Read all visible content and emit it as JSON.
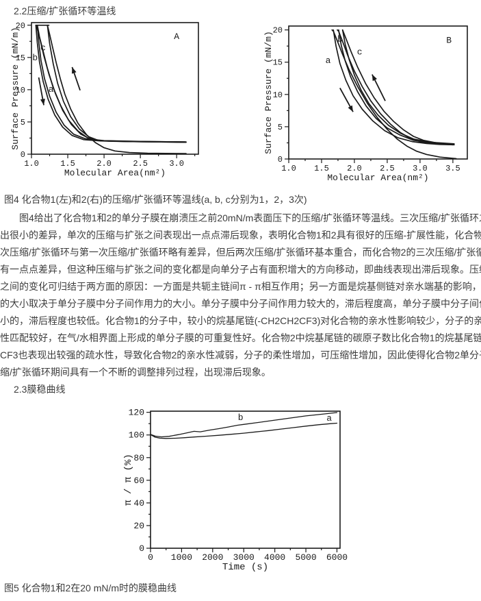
{
  "page": {
    "heading_2_2": "2.2压缩/扩张循环等温线",
    "heading_2_3": "2.3膜稳曲线",
    "fig4_caption": "图4 化合物1(左)和2(右)的压缩/扩张循环等温线(a, b, c分别为1，2，3次)",
    "fig5_caption": "图5 化合物1和2在20 mN/m时的膜稳曲线",
    "paragraph_lines": [
      "图4给出了化合物1和2的单分子膜在崩溃压之前20mN/m表面压下的压缩/扩张循环等温线。三次压缩/扩张循环之间表现",
      "出很小的差异，单次的压缩与扩张之间表现出一点点滞后现象，表明化合物1和2具有很好的压缩-扩展性能，化合物1的第二",
      "次压缩/扩张循环与第一次压缩/扩张循环略有差异，但后两次压缩/扩张循环基本重合，而化合物2的三次压缩/扩张循环之间",
      "有一点点差异，但这种压缩与扩张之间的变化都是向单分子占有面积增大的方向移动，即曲线表现出滞后现象。压缩与扩张",
      "之间的变化可归结于两方面的原因：一方面是共轭主链间π - π相互作用；另一方面是烷基侧链对亲水端基的影响，滞后程度",
      "的大小取决于单分子膜中分子间作用力的大小。单分子膜中分子间作用力较大的，滞后程度高，单分子膜中分子间作用力较",
      "小的，滞后程度也较低。化合物1的分子中，较小的烷基尾链(-CH2CH2CF3)对化合物的亲水性影响较少，分子的亲水-疏水",
      "性匹配较好，在气/水相界面上形成的单分子膜的可重复性好。化合物2中烷基尾链的碳原子数比化合物1的烷基尾链多，-",
      "CF3也表现出较强的疏水性，导致化合物2的亲水性减弱，分子的柔性增加，可压缩性增加，因此使得化合物2单分子膜在压",
      "缩/扩张循环期间具有一个不断的调整排列过程，出现滞后现象。"
    ]
  },
  "colors": {
    "ink": "#1a1a1a",
    "text": "#3d3d3d",
    "background": "#ffffff"
  },
  "chart_data": [
    {
      "type": "line",
      "id": "fig4-left",
      "corner_label": "A",
      "xlabel": "Molecular Area(nm²)",
      "ylabel": "Surface Pressure (mN/m)",
      "xlim": [
        1.0,
        3.3
      ],
      "ylim": [
        0,
        20.4
      ],
      "x_ticks": [
        1.0,
        1.5,
        2.0,
        2.5,
        3.0
      ],
      "x_tick_labels": [
        "1.0",
        "1.5",
        "2.0",
        "2.5",
        "3.0"
      ],
      "x_minor_step": 0.25,
      "y_ticks": [
        0,
        5,
        10,
        15,
        20
      ],
      "y_tick_labels": [
        "0",
        "5",
        "10",
        "15",
        "20"
      ],
      "y_minor_step": 2.5,
      "grid": false,
      "series": [
        {
          "name": "cycle-a-compression",
          "points": [
            [
              3.13,
              0.1
            ],
            [
              2.6,
              0.15
            ],
            [
              2.35,
              0.25
            ],
            [
              2.15,
              0.5
            ],
            [
              2.0,
              1.0
            ],
            [
              1.88,
              1.8
            ],
            [
              1.76,
              3.0
            ],
            [
              1.64,
              4.8
            ],
            [
              1.54,
              7.0
            ],
            [
              1.46,
              9.3
            ],
            [
              1.4,
              11.6
            ],
            [
              1.34,
              14.2
            ],
            [
              1.29,
              16.6
            ],
            [
              1.25,
              18.6
            ],
            [
              1.22,
              20
            ]
          ]
        },
        {
          "name": "cycle-a-expansion",
          "points": [
            [
              1.22,
              20
            ],
            [
              1.25,
              17.2
            ],
            [
              1.3,
              14.0
            ],
            [
              1.36,
              11.0
            ],
            [
              1.44,
              8.2
            ],
            [
              1.54,
              5.8
            ],
            [
              1.66,
              3.9
            ],
            [
              1.79,
              2.7
            ],
            [
              1.92,
              2.15
            ],
            [
              2.1,
              2.0
            ],
            [
              2.6,
              1.92
            ],
            [
              3.13,
              1.85
            ]
          ]
        },
        {
          "name": "cycle-b-compression",
          "points": [
            [
              3.12,
              1.85
            ],
            [
              2.4,
              1.95
            ],
            [
              2.0,
              2.05
            ],
            [
              1.82,
              2.3
            ],
            [
              1.68,
              3.1
            ],
            [
              1.55,
              4.6
            ],
            [
              1.43,
              6.8
            ],
            [
              1.33,
              9.4
            ],
            [
              1.24,
              12.4
            ],
            [
              1.17,
              15.3
            ],
            [
              1.12,
              17.7
            ],
            [
              1.08,
              19.4
            ],
            [
              1.06,
              20
            ]
          ]
        },
        {
          "name": "cycle-b-expansion",
          "points": [
            [
              1.06,
              20
            ],
            [
              1.08,
              17.3
            ],
            [
              1.11,
              14.3
            ],
            [
              1.16,
              11.3
            ],
            [
              1.23,
              8.5
            ],
            [
              1.32,
              6.1
            ],
            [
              1.43,
              4.2
            ],
            [
              1.56,
              2.9
            ],
            [
              1.72,
              2.25
            ],
            [
              1.95,
              2.05
            ],
            [
              2.4,
              1.95
            ],
            [
              3.12,
              1.88
            ]
          ]
        },
        {
          "name": "cycle-c-compression",
          "points": [
            [
              3.12,
              1.9
            ],
            [
              2.3,
              2.0
            ],
            [
              1.95,
              2.1
            ],
            [
              1.78,
              2.5
            ],
            [
              1.64,
              3.6
            ],
            [
              1.51,
              5.3
            ],
            [
              1.4,
              7.6
            ],
            [
              1.3,
              10.3
            ],
            [
              1.22,
              13.3
            ],
            [
              1.16,
              16.0
            ],
            [
              1.11,
              18.2
            ],
            [
              1.09,
              19.5
            ],
            [
              1.08,
              20
            ]
          ]
        },
        {
          "name": "cycle-c-expansion",
          "points": [
            [
              1.08,
              20
            ],
            [
              1.1,
              17.5
            ],
            [
              1.13,
              14.6
            ],
            [
              1.18,
              11.7
            ],
            [
              1.25,
              9.0
            ],
            [
              1.34,
              6.5
            ],
            [
              1.45,
              4.5
            ],
            [
              1.58,
              3.1
            ],
            [
              1.74,
              2.4
            ],
            [
              2.0,
              2.1
            ],
            [
              2.5,
              1.98
            ],
            [
              3.13,
              1.9
            ]
          ]
        },
        {
          "name": "top-cap",
          "points": [
            [
              1.06,
              20
            ],
            [
              1.24,
              20
            ]
          ]
        }
      ],
      "annotations": [
        {
          "text": "a",
          "x": 1.27,
          "y": 10.1
        },
        {
          "text": "b",
          "x": 1.05,
          "y": 15.0
        },
        {
          "text": "c",
          "x": 1.16,
          "y": 16.5
        },
        {
          "text": "A",
          "x": 3.0,
          "y": 18.3
        }
      ],
      "arrows": [
        {
          "x1": 1.1,
          "y1": 11.9,
          "x2": 1.17,
          "y2": 7.6
        },
        {
          "x1": 1.67,
          "y1": 9.9,
          "x2": 1.56,
          "y2": 13.5
        }
      ]
    },
    {
      "type": "line",
      "id": "fig4-right",
      "corner_label": "B",
      "xlabel": "Molecular Area(nm²)",
      "ylabel": "Surface Pressure (mN/m)",
      "xlim": [
        1.0,
        3.72
      ],
      "ylim": [
        0,
        20.6
      ],
      "x_ticks": [
        1.0,
        1.5,
        2.0,
        2.5,
        3.0,
        3.5
      ],
      "x_tick_labels": [
        "1.0",
        "1.5",
        "2.0",
        "2.5",
        "3.0",
        "3.5"
      ],
      "x_minor_step": 0.25,
      "y_ticks": [
        0,
        5,
        10,
        15,
        20
      ],
      "y_tick_labels": [
        "0",
        "5",
        "10",
        "15",
        "20"
      ],
      "y_minor_step": 2.5,
      "grid": false,
      "series": [
        {
          "name": "cycle-a-compression",
          "points": [
            [
              3.55,
              0.05
            ],
            [
              3.3,
              0.3
            ],
            [
              3.1,
              0.7
            ],
            [
              2.95,
              1.2
            ],
            [
              2.8,
              2.0
            ],
            [
              2.65,
              3.1
            ],
            [
              2.5,
              4.6
            ],
            [
              2.35,
              6.4
            ],
            [
              2.2,
              8.6
            ],
            [
              2.05,
              11.2
            ],
            [
              1.92,
              13.8
            ],
            [
              1.82,
              16.2
            ],
            [
              1.74,
              18.3
            ],
            [
              1.68,
              19.8
            ],
            [
              1.66,
              20
            ]
          ]
        },
        {
          "name": "cycle-a-expansion",
          "points": [
            [
              1.68,
              20
            ],
            [
              1.72,
              17.5
            ],
            [
              1.78,
              14.8
            ],
            [
              1.87,
              12.2
            ],
            [
              1.98,
              9.8
            ],
            [
              2.12,
              7.7
            ],
            [
              2.28,
              5.9
            ],
            [
              2.46,
              4.4
            ],
            [
              2.66,
              3.3
            ],
            [
              2.88,
              2.7
            ],
            [
              3.1,
              2.4
            ],
            [
              3.3,
              2.25
            ],
            [
              3.52,
              2.2
            ]
          ]
        },
        {
          "name": "cycle-b-compression",
          "points": [
            [
              3.5,
              2.2
            ],
            [
              3.2,
              2.4
            ],
            [
              3.0,
              2.7
            ],
            [
              2.85,
              3.2
            ],
            [
              2.7,
              4.1
            ],
            [
              2.55,
              5.4
            ],
            [
              2.4,
              7.0
            ],
            [
              2.25,
              9.0
            ],
            [
              2.12,
              11.2
            ],
            [
              2.0,
              13.6
            ],
            [
              1.9,
              16.0
            ],
            [
              1.82,
              18.2
            ],
            [
              1.76,
              19.8
            ],
            [
              1.74,
              20
            ]
          ]
        },
        {
          "name": "cycle-b-expansion",
          "points": [
            [
              1.76,
              20
            ],
            [
              1.8,
              17.6
            ],
            [
              1.86,
              15.2
            ],
            [
              1.94,
              12.8
            ],
            [
              2.05,
              10.4
            ],
            [
              2.18,
              8.2
            ],
            [
              2.33,
              6.3
            ],
            [
              2.5,
              4.8
            ],
            [
              2.7,
              3.7
            ],
            [
              2.9,
              2.9
            ],
            [
              3.15,
              2.5
            ],
            [
              3.5,
              2.3
            ]
          ]
        },
        {
          "name": "cycle-c-compression",
          "points": [
            [
              3.5,
              2.3
            ],
            [
              3.25,
              2.5
            ],
            [
              3.05,
              2.9
            ],
            [
              2.9,
              3.5
            ],
            [
              2.75,
              4.5
            ],
            [
              2.6,
              5.8
            ],
            [
              2.45,
              7.4
            ],
            [
              2.3,
              9.5
            ],
            [
              2.17,
              11.7
            ],
            [
              2.05,
              14.2
            ],
            [
              1.95,
              16.6
            ],
            [
              1.87,
              18.7
            ],
            [
              1.82,
              20
            ]
          ]
        },
        {
          "name": "cycle-c-expansion",
          "points": [
            [
              1.82,
              20
            ],
            [
              1.86,
              17.8
            ],
            [
              1.92,
              15.4
            ],
            [
              2.0,
              13.0
            ],
            [
              2.1,
              10.7
            ],
            [
              2.22,
              8.6
            ],
            [
              2.36,
              6.8
            ],
            [
              2.52,
              5.2
            ],
            [
              2.7,
              4.0
            ],
            [
              2.9,
              3.1
            ],
            [
              3.15,
              2.6
            ],
            [
              3.52,
              2.35
            ]
          ]
        }
      ],
      "annotations": [
        {
          "text": "a",
          "x": 1.6,
          "y": 15.3
        },
        {
          "text": "b",
          "x": 1.78,
          "y": 18.6
        },
        {
          "text": "c",
          "x": 2.08,
          "y": 16.6
        },
        {
          "text": "B",
          "x": 3.44,
          "y": 18.4
        }
      ],
      "arrows": [
        {
          "x1": 1.78,
          "y1": 11.0,
          "x2": 1.98,
          "y2": 7.3
        },
        {
          "x1": 2.47,
          "y1": 9.0,
          "x2": 2.27,
          "y2": 13.1
        }
      ]
    },
    {
      "type": "line",
      "id": "fig5",
      "corner_label": "",
      "xlabel": "Time (s)",
      "ylabel": "π / π (%)",
      "xlim": [
        0,
        6100
      ],
      "ylim": [
        0,
        121
      ],
      "x_ticks": [
        0,
        1000,
        2000,
        3000,
        4000,
        5000,
        6000
      ],
      "x_tick_labels": [
        "0",
        "1000",
        "2000",
        "3000",
        "4000",
        "5000",
        "6000"
      ],
      "x_minor_step": 500,
      "y_ticks": [
        0,
        20,
        40,
        60,
        80,
        100,
        120
      ],
      "y_tick_labels": [
        "0",
        "20",
        "40",
        "60",
        "80",
        "100",
        "120"
      ],
      "y_minor_step": 10,
      "grid": false,
      "series": [
        {
          "name": "compound-2-curve-b",
          "points": [
            [
              0,
              100.5
            ],
            [
              150,
              99
            ],
            [
              350,
              98.3
            ],
            [
              600,
              98.8
            ],
            [
              900,
              100.3
            ],
            [
              1200,
              102
            ],
            [
              1400,
              103.2
            ],
            [
              1600,
              102.8
            ],
            [
              1900,
              104.3
            ],
            [
              2200,
              105.6
            ],
            [
              2500,
              107
            ],
            [
              2800,
              108.6
            ],
            [
              3000,
              109.3
            ],
            [
              3400,
              110.8
            ],
            [
              3800,
              112.3
            ],
            [
              4200,
              113.8
            ],
            [
              4600,
              115.3
            ],
            [
              5000,
              116.8
            ],
            [
              5400,
              118
            ],
            [
              5800,
              119.2
            ],
            [
              6000,
              119.8
            ]
          ]
        },
        {
          "name": "compound-1-curve-a",
          "points": [
            [
              0,
              100.3
            ],
            [
              150,
              98
            ],
            [
              300,
              97.2
            ],
            [
              500,
              96.9
            ],
            [
              800,
              97.1
            ],
            [
              1100,
              97.6
            ],
            [
              1400,
              98.2
            ],
            [
              1800,
              98.9
            ],
            [
              2200,
              99.7
            ],
            [
              2600,
              100.6
            ],
            [
              3000,
              101.6
            ],
            [
              3400,
              102.7
            ],
            [
              3800,
              103.9
            ],
            [
              4200,
              105.2
            ],
            [
              4600,
              106.5
            ],
            [
              5000,
              107.8
            ],
            [
              5400,
              109
            ],
            [
              5800,
              110
            ],
            [
              6000,
              110.4
            ]
          ]
        }
      ],
      "annotations": [
        {
          "text": "b",
          "x": 2900,
          "y": 115.5
        },
        {
          "text": "a",
          "x": 5750,
          "y": 115.0
        }
      ],
      "arrows": []
    }
  ]
}
